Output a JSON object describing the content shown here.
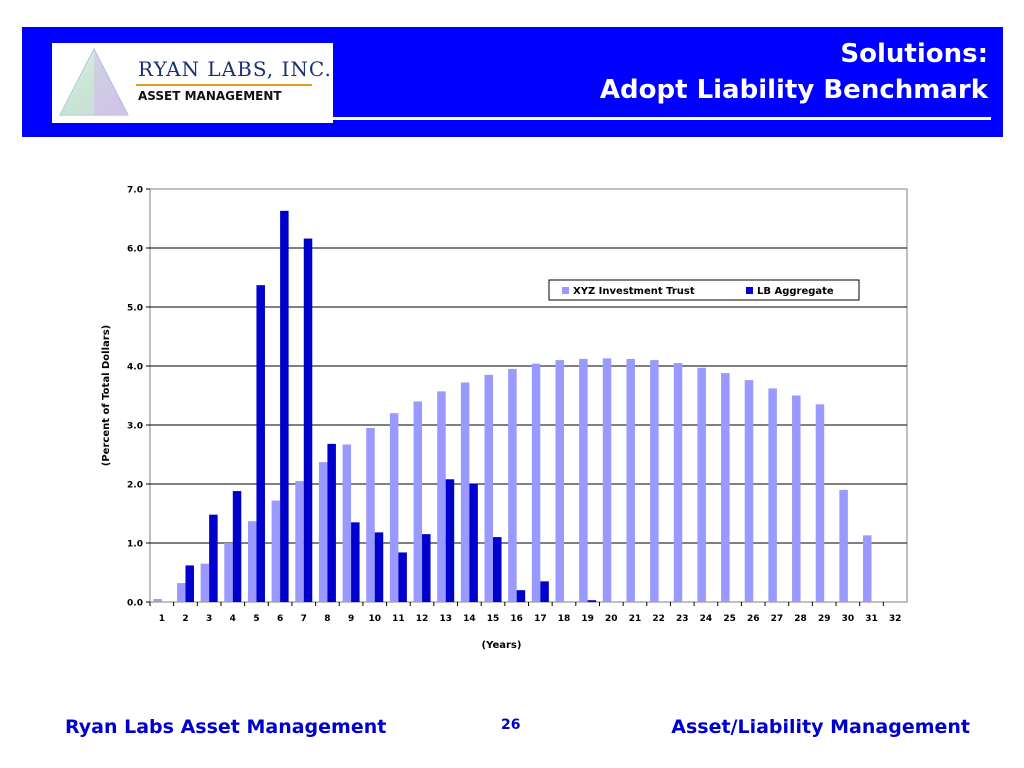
{
  "header": {
    "title_line1": "Solutions:",
    "title_line2": "Adopt Liability Benchmark",
    "logo_name": "RYAN LABS, INC.",
    "logo_sub": "ASSET MANAGEMENT"
  },
  "footer": {
    "left": "Ryan Labs Asset Management",
    "page": "26",
    "right": "Asset/Liability Management"
  },
  "colors": {
    "header_bg": "#0000ff",
    "series_light": "#9999ff",
    "series_dark": "#0000cc"
  },
  "chart_data": {
    "type": "bar",
    "title": "",
    "xlabel": "(Years)",
    "ylabel": "(Percent of Total Dollars)",
    "ylim": [
      0,
      7
    ],
    "yticks": [
      "0.0",
      "1.0",
      "2.0",
      "3.0",
      "4.0",
      "5.0",
      "6.0",
      "7.0"
    ],
    "categories": [
      "1",
      "2",
      "3",
      "4",
      "5",
      "6",
      "7",
      "8",
      "9",
      "10",
      "11",
      "12",
      "13",
      "14",
      "15",
      "16",
      "17",
      "18",
      "19",
      "20",
      "21",
      "22",
      "23",
      "24",
      "25",
      "26",
      "27",
      "28",
      "29",
      "30",
      "31",
      "32"
    ],
    "legend": "top-right",
    "grid": true,
    "series": [
      {
        "name": "XYZ Investment Trust",
        "values": [
          0.05,
          0.32,
          0.65,
          1.0,
          1.37,
          1.72,
          2.05,
          2.37,
          2.67,
          2.95,
          3.2,
          3.4,
          3.57,
          3.72,
          3.85,
          3.95,
          4.04,
          4.1,
          4.12,
          4.13,
          4.12,
          4.1,
          4.05,
          3.97,
          3.88,
          3.76,
          3.62,
          3.5,
          3.35,
          1.9,
          1.13,
          0
        ]
      },
      {
        "name": "LB Aggregate",
        "values": [
          0,
          0.62,
          1.48,
          1.88,
          5.37,
          6.63,
          6.16,
          2.68,
          1.35,
          1.18,
          0.84,
          1.15,
          2.08,
          2.0,
          1.1,
          0.2,
          0.35,
          0,
          0.03,
          0,
          0,
          0,
          0,
          0,
          0,
          0,
          0,
          0,
          0,
          0,
          0,
          0
        ]
      }
    ]
  }
}
